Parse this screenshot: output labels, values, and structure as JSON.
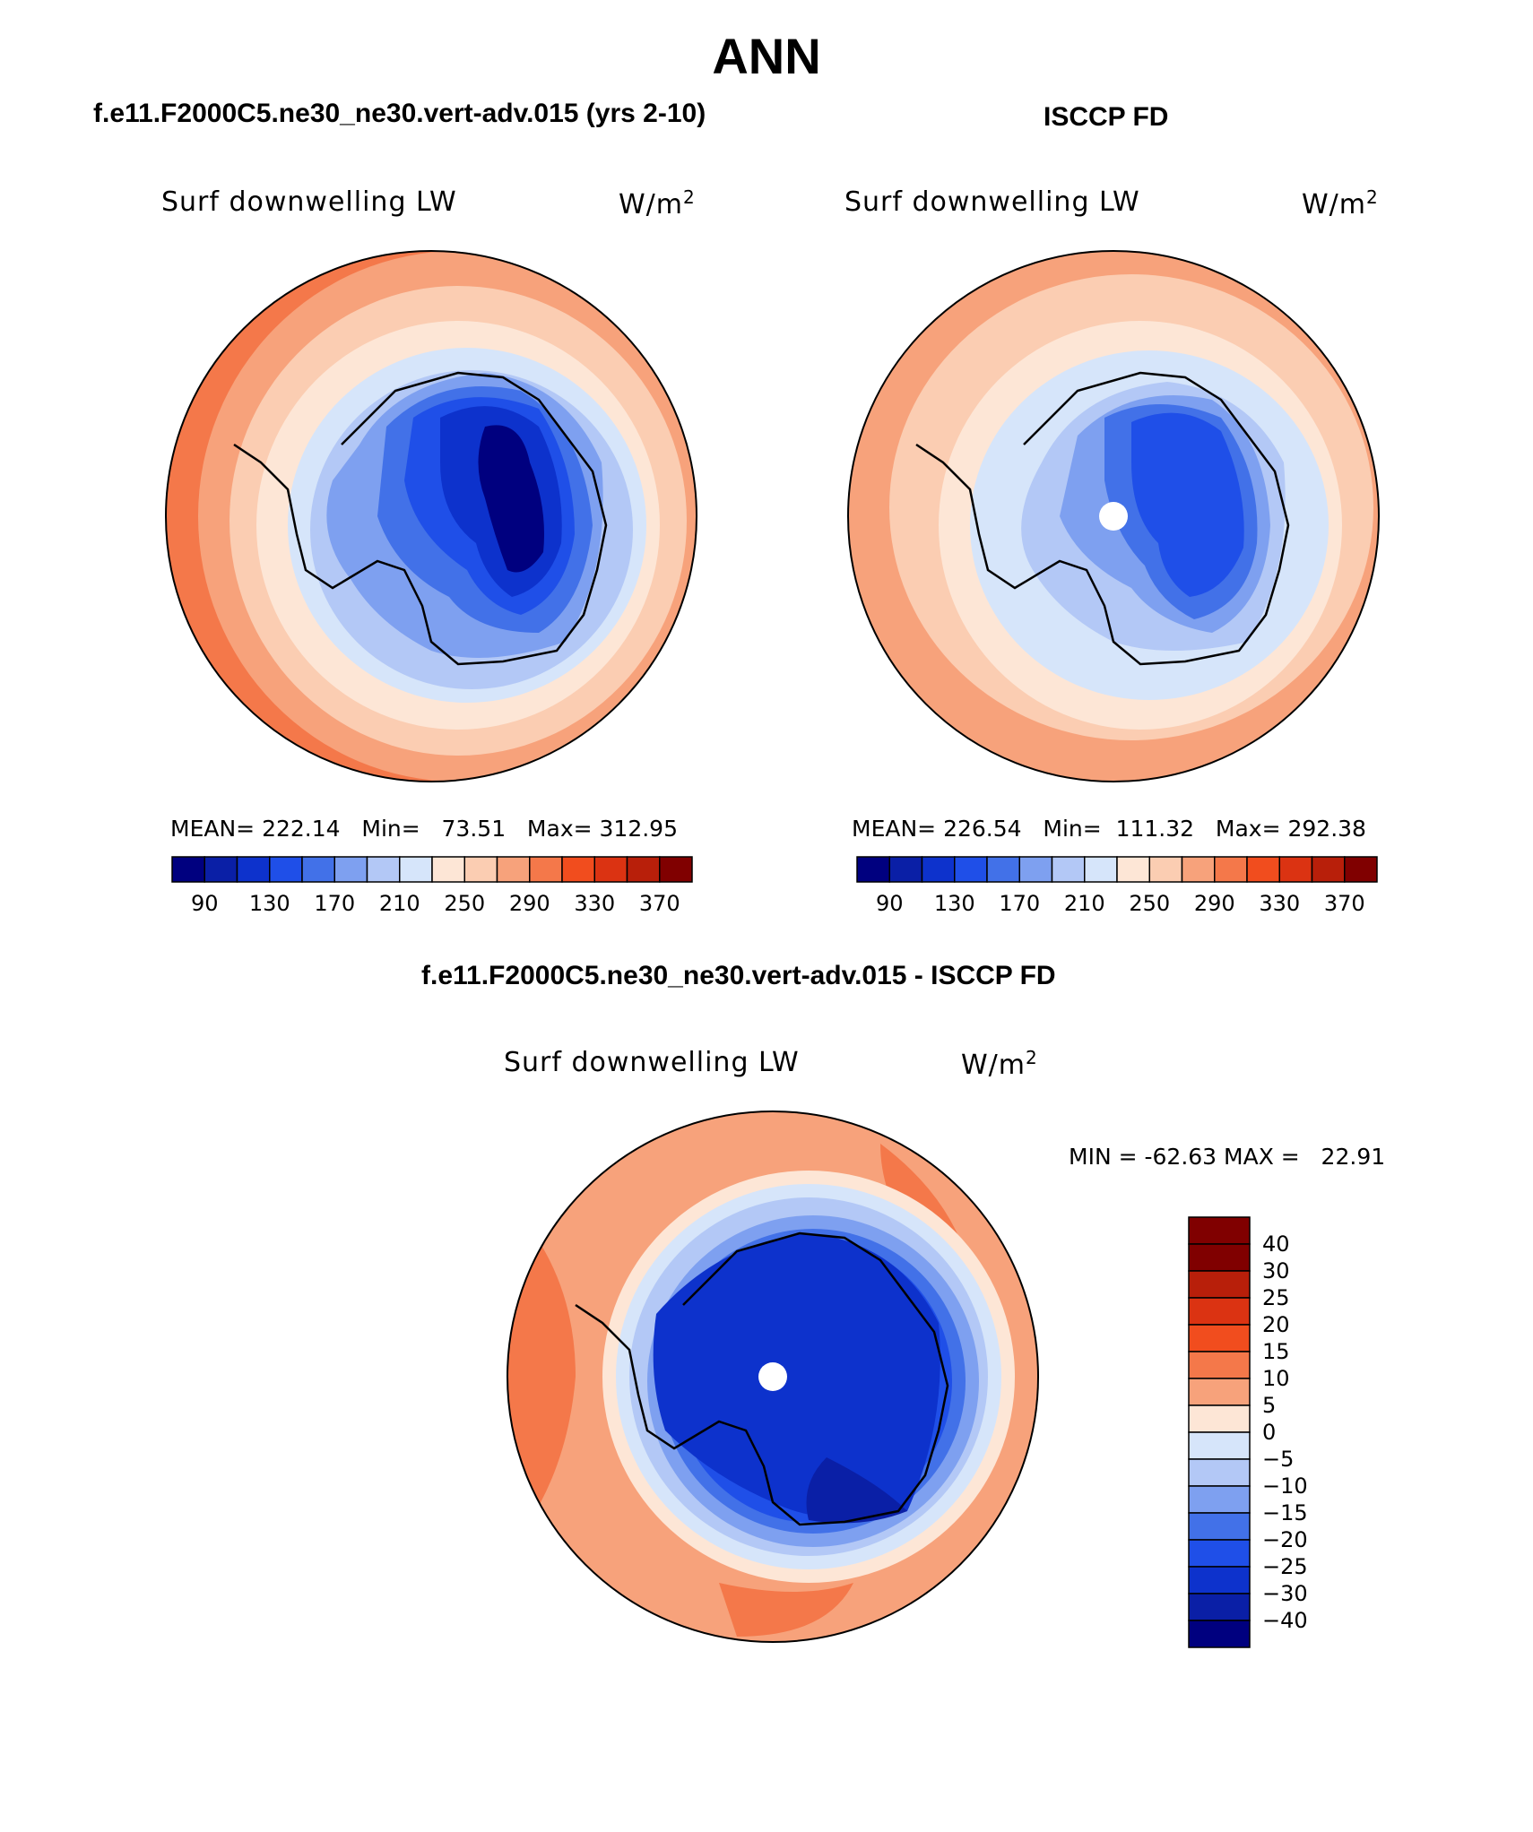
{
  "title": "ANN",
  "panels": {
    "model": {
      "header": "f.e11.F2000C5.ne30_ne30.vert-adv.015 (yrs 2-10)",
      "variable": "Surf downwelling LW",
      "units_base": "W/m",
      "units_exp": "2",
      "stats": "MEAN= 222.14   Min=   73.51   Max= 312.95"
    },
    "obs": {
      "header": "ISCCP FD",
      "variable": "Surf downwelling LW",
      "units_base": "W/m",
      "units_exp": "2",
      "stats": "MEAN= 226.54   Min=  111.32   Max= 292.38"
    },
    "diff": {
      "header": "f.e11.F2000C5.ne30_ne30.vert-adv.015 - ISCCP FD",
      "variable": "Surf downwelling LW",
      "units_base": "W/m",
      "units_exp": "2",
      "stats": "MIN = -62.63 MAX =   22.91"
    }
  },
  "colorbar_abs": {
    "colors": [
      "#00007f",
      "#0a1fa6",
      "#0d32cc",
      "#1f4fe8",
      "#4271e8",
      "#7ea0f0",
      "#b3c8f6",
      "#d6e5fa",
      "#fde6d6",
      "#fbcdb2",
      "#f7a27b",
      "#f4784a",
      "#f14d1e",
      "#db3312",
      "#b81f0a",
      "#800000"
    ],
    "labels": [
      "90",
      "130",
      "170",
      "210",
      "250",
      "290",
      "330",
      "370"
    ]
  },
  "colorbar_diff": {
    "colors": [
      "#800000",
      "#b81f0a",
      "#db3312",
      "#f14d1e",
      "#f4784a",
      "#f7a27b",
      "#fde6d6",
      "#d6e5fa",
      "#b3c8f6",
      "#7ea0f0",
      "#4271e8",
      "#1f4fe8",
      "#0d32cc",
      "#0a1fa6",
      "#00007f"
    ],
    "labels": [
      "40",
      "30",
      "25",
      "20",
      "15",
      "10",
      "5",
      "0",
      "−5",
      "−10",
      "−15",
      "−20",
      "−25",
      "−30",
      "−40"
    ]
  }
}
